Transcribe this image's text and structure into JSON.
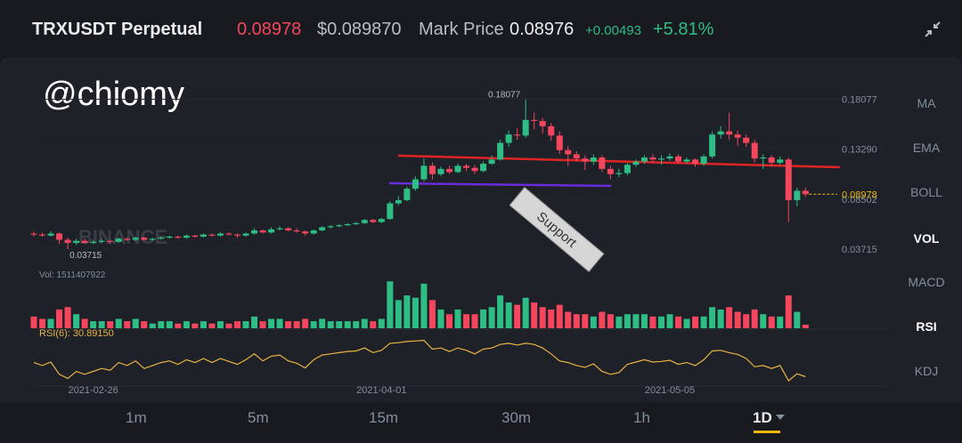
{
  "header": {
    "symbol": "TRXUSDT Perpetual",
    "last_price": "0.08978",
    "usd_price": "$0.089870",
    "mark_label": "Mark Price",
    "mark_price": "0.08976",
    "change": "+0.00493",
    "change_pct": "+5.81%"
  },
  "watermark": "@chiomy",
  "exchange_watermark": "BINANCE",
  "indicators": [
    "MA",
    "EMA",
    "BOLL",
    "VOL",
    "MACD",
    "RSI",
    "KDJ"
  ],
  "intervals": [
    "1m",
    "5m",
    "15m",
    "30m",
    "1h",
    "1D"
  ],
  "chart_data": {
    "type": "candlestick",
    "x": [
      "2021-02-19",
      "2021-02-20",
      "2021-02-21",
      "2021-02-22",
      "2021-02-23",
      "2021-02-24",
      "2021-02-25",
      "2021-02-26",
      "2021-02-27",
      "2021-02-28",
      "2021-03-01",
      "2021-03-02",
      "2021-03-03",
      "2021-03-04",
      "2021-03-05",
      "2021-03-06",
      "2021-03-07",
      "2021-03-08",
      "2021-03-09",
      "2021-03-10",
      "2021-03-11",
      "2021-03-12",
      "2021-03-13",
      "2021-03-14",
      "2021-03-15",
      "2021-03-16",
      "2021-03-17",
      "2021-03-18",
      "2021-03-19",
      "2021-03-20",
      "2021-03-21",
      "2021-03-22",
      "2021-03-23",
      "2021-03-24",
      "2021-03-25",
      "2021-03-26",
      "2021-03-27",
      "2021-03-28",
      "2021-03-29",
      "2021-03-30",
      "2021-03-31",
      "2021-04-01",
      "2021-04-02",
      "2021-04-03",
      "2021-04-04",
      "2021-04-05",
      "2021-04-06",
      "2021-04-07",
      "2021-04-08",
      "2021-04-09",
      "2021-04-10",
      "2021-04-11",
      "2021-04-12",
      "2021-04-13",
      "2021-04-14",
      "2021-04-15",
      "2021-04-16",
      "2021-04-17",
      "2021-04-18",
      "2021-04-19",
      "2021-04-20",
      "2021-04-21",
      "2021-04-22",
      "2021-04-23",
      "2021-04-24",
      "2021-04-25",
      "2021-04-26",
      "2021-04-27",
      "2021-04-28",
      "2021-04-29",
      "2021-04-30",
      "2021-05-01",
      "2021-05-02",
      "2021-05-03",
      "2021-05-04",
      "2021-05-05",
      "2021-05-06",
      "2021-05-07",
      "2021-05-08",
      "2021-05-09",
      "2021-05-10",
      "2021-05-11",
      "2021-05-12",
      "2021-05-13",
      "2021-05-14",
      "2021-05-15",
      "2021-05-16",
      "2021-05-17",
      "2021-05-18",
      "2021-05-19",
      "2021-05-20",
      "2021-05-21"
    ],
    "candles": [
      [
        0.052,
        0.054,
        0.049,
        0.051
      ],
      [
        0.051,
        0.053,
        0.049,
        0.05
      ],
      [
        0.05,
        0.054,
        0.049,
        0.052
      ],
      [
        0.052,
        0.053,
        0.042,
        0.046
      ],
      [
        0.046,
        0.048,
        0.03715,
        0.043
      ],
      [
        0.043,
        0.047,
        0.041,
        0.045
      ],
      [
        0.045,
        0.047,
        0.042,
        0.043
      ],
      [
        0.043,
        0.046,
        0.042,
        0.044
      ],
      [
        0.044,
        0.047,
        0.043,
        0.045
      ],
      [
        0.045,
        0.046,
        0.042,
        0.044
      ],
      [
        0.044,
        0.048,
        0.043,
        0.047
      ],
      [
        0.047,
        0.048,
        0.045,
        0.046
      ],
      [
        0.046,
        0.049,
        0.045,
        0.048
      ],
      [
        0.048,
        0.049,
        0.045,
        0.046
      ],
      [
        0.046,
        0.048,
        0.045,
        0.047
      ],
      [
        0.047,
        0.049,
        0.046,
        0.048
      ],
      [
        0.048,
        0.05,
        0.047,
        0.049
      ],
      [
        0.049,
        0.05,
        0.047,
        0.048
      ],
      [
        0.048,
        0.051,
        0.047,
        0.05
      ],
      [
        0.05,
        0.051,
        0.048,
        0.049
      ],
      [
        0.049,
        0.052,
        0.048,
        0.051
      ],
      [
        0.051,
        0.052,
        0.049,
        0.05
      ],
      [
        0.05,
        0.053,
        0.049,
        0.052
      ],
      [
        0.052,
        0.053,
        0.05,
        0.051
      ],
      [
        0.051,
        0.052,
        0.048,
        0.05
      ],
      [
        0.05,
        0.053,
        0.049,
        0.052
      ],
      [
        0.052,
        0.057,
        0.051,
        0.055
      ],
      [
        0.055,
        0.056,
        0.052,
        0.053
      ],
      [
        0.053,
        0.058,
        0.052,
        0.056
      ],
      [
        0.056,
        0.059,
        0.055,
        0.057
      ],
      [
        0.057,
        0.058,
        0.054,
        0.055
      ],
      [
        0.055,
        0.057,
        0.053,
        0.054
      ],
      [
        0.054,
        0.055,
        0.05,
        0.052
      ],
      [
        0.052,
        0.056,
        0.051,
        0.055
      ],
      [
        0.055,
        0.059,
        0.054,
        0.058
      ],
      [
        0.058,
        0.06,
        0.057,
        0.059
      ],
      [
        0.059,
        0.061,
        0.058,
        0.06
      ],
      [
        0.06,
        0.062,
        0.059,
        0.061
      ],
      [
        0.061,
        0.063,
        0.06,
        0.062
      ],
      [
        0.062,
        0.066,
        0.061,
        0.065
      ],
      [
        0.065,
        0.066,
        0.062,
        0.063
      ],
      [
        0.063,
        0.067,
        0.062,
        0.066
      ],
      [
        0.066,
        0.083,
        0.065,
        0.081
      ],
      [
        0.081,
        0.088,
        0.079,
        0.084
      ],
      [
        0.084,
        0.097,
        0.083,
        0.095
      ],
      [
        0.095,
        0.107,
        0.093,
        0.104
      ],
      [
        0.104,
        0.124,
        0.102,
        0.117
      ],
      [
        0.117,
        0.12,
        0.104,
        0.109
      ],
      [
        0.109,
        0.116,
        0.107,
        0.114
      ],
      [
        0.114,
        0.117,
        0.109,
        0.111
      ],
      [
        0.111,
        0.119,
        0.11,
        0.117
      ],
      [
        0.117,
        0.119,
        0.112,
        0.115
      ],
      [
        0.115,
        0.118,
        0.109,
        0.112
      ],
      [
        0.112,
        0.121,
        0.111,
        0.119
      ],
      [
        0.119,
        0.127,
        0.118,
        0.123
      ],
      [
        0.123,
        0.142,
        0.122,
        0.139
      ],
      [
        0.139,
        0.151,
        0.135,
        0.147
      ],
      [
        0.147,
        0.153,
        0.142,
        0.146
      ],
      [
        0.146,
        0.18077,
        0.144,
        0.161
      ],
      [
        0.161,
        0.168,
        0.152,
        0.16
      ],
      [
        0.16,
        0.163,
        0.148,
        0.155
      ],
      [
        0.155,
        0.158,
        0.141,
        0.146
      ],
      [
        0.146,
        0.15,
        0.128,
        0.132
      ],
      [
        0.132,
        0.136,
        0.117,
        0.128
      ],
      [
        0.128,
        0.131,
        0.121,
        0.124
      ],
      [
        0.124,
        0.127,
        0.113,
        0.121
      ],
      [
        0.121,
        0.128,
        0.118,
        0.125
      ],
      [
        0.125,
        0.127,
        0.111,
        0.114
      ],
      [
        0.114,
        0.117,
        0.104,
        0.109
      ],
      [
        0.109,
        0.114,
        0.106,
        0.11
      ],
      [
        0.11,
        0.12,
        0.108,
        0.118
      ],
      [
        0.118,
        0.123,
        0.116,
        0.121
      ],
      [
        0.121,
        0.127,
        0.119,
        0.125
      ],
      [
        0.125,
        0.128,
        0.12,
        0.123
      ],
      [
        0.123,
        0.127,
        0.118,
        0.124
      ],
      [
        0.124,
        0.129,
        0.122,
        0.126
      ],
      [
        0.126,
        0.128,
        0.119,
        0.121
      ],
      [
        0.121,
        0.125,
        0.119,
        0.123
      ],
      [
        0.123,
        0.124,
        0.116,
        0.119
      ],
      [
        0.119,
        0.128,
        0.117,
        0.126
      ],
      [
        0.126,
        0.15,
        0.124,
        0.147
      ],
      [
        0.147,
        0.155,
        0.143,
        0.15
      ],
      [
        0.15,
        0.168,
        0.142,
        0.147
      ],
      [
        0.147,
        0.151,
        0.136,
        0.144
      ],
      [
        0.144,
        0.147,
        0.135,
        0.139
      ],
      [
        0.139,
        0.142,
        0.12,
        0.124
      ],
      [
        0.124,
        0.128,
        0.114,
        0.125
      ],
      [
        0.125,
        0.127,
        0.116,
        0.12
      ],
      [
        0.12,
        0.126,
        0.118,
        0.123
      ],
      [
        0.123,
        0.125,
        0.063,
        0.084
      ],
      [
        0.084,
        0.096,
        0.078,
        0.093
      ],
      [
        0.093,
        0.096,
        0.087,
        0.08978
      ]
    ],
    "ylim": [
      0.02,
      0.195
    ],
    "yticks": [
      0.03715,
      0.08502,
      {
        "value": 0.1329,
        "label": "0.13290"
      },
      0.18077
    ],
    "xticks": [
      "2021-02-26",
      "2021-04-01",
      "2021-05-05"
    ],
    "volume_label": "Vol:",
    "volume": [
      5000000000.0,
      4000000000.0,
      4000000000.0,
      8000000000.0,
      9000000000.0,
      6000000000.0,
      4000000000.0,
      3000000000.0,
      3000000000.0,
      3000000000.0,
      4000000000.0,
      3000000000.0,
      4000000000.0,
      3000000000.0,
      2000000000.0,
      3000000000.0,
      3000000000.0,
      2000000000.0,
      3000000000.0,
      2000000000.0,
      3000000000.0,
      2000000000.0,
      3000000000.0,
      2000000000.0,
      3000000000.0,
      3000000000.0,
      5000000000.0,
      3000000000.0,
      4000000000.0,
      4000000000.0,
      3000000000.0,
      3000000000.0,
      4000000000.0,
      3000000000.0,
      4000000000.0,
      3000000000.0,
      3000000000.0,
      3000000000.0,
      3000000000.0,
      4000000000.0,
      3000000000.0,
      4000000000.0,
      20000000000.0,
      12000000000.0,
      14000000000.0,
      13000000000.0,
      19000000000.0,
      12000000000.0,
      8000000000.0,
      6000000000.0,
      8000000000.0,
      6000000000.0,
      6000000000.0,
      8000000000.0,
      9000000000.0,
      14000000000.0,
      11000000000.0,
      10000000000.0,
      13000000000.0,
      11000000000.0,
      9000000000.0,
      8000000000.0,
      10000000000.0,
      7000000000.0,
      6000000000.0,
      6000000000.0,
      5000000000.0,
      7000000000.0,
      6000000000.0,
      5000000000.0,
      6000000000.0,
      6000000000.0,
      6000000000.0,
      5000000000.0,
      5000000000.0,
      6000000000.0,
      5000000000.0,
      4000000000.0,
      5000000000.0,
      5000000000.0,
      9000000000.0,
      8000000000.0,
      9000000000.0,
      7000000000.0,
      6000000000.0,
      8000000000.0,
      6000000000.0,
      5000000000.0,
      5000000000.0,
      14000000000.0,
      7000000000.0,
      1511407922
    ],
    "vlim": [
      0,
      22000000000.0
    ],
    "rsi_label": "RSI(6): 30.89150",
    "rsi": [
      55,
      50,
      56,
      35,
      28,
      40,
      35,
      40,
      45,
      42,
      55,
      50,
      58,
      45,
      50,
      55,
      58,
      52,
      60,
      55,
      62,
      55,
      62,
      57,
      52,
      60,
      70,
      58,
      66,
      68,
      58,
      54,
      46,
      60,
      68,
      70,
      72,
      74,
      75,
      80,
      72,
      76,
      88,
      89,
      91,
      92,
      93,
      78,
      80,
      74,
      80,
      76,
      70,
      78,
      80,
      86,
      88,
      85,
      88,
      86,
      80,
      70,
      58,
      55,
      50,
      47,
      53,
      40,
      35,
      38,
      52,
      56,
      60,
      56,
      57,
      59,
      52,
      55,
      50,
      60,
      75,
      76,
      72,
      69,
      62,
      48,
      50,
      45,
      50,
      24,
      36,
      30.8915
    ],
    "rlim": [
      15,
      100
    ],
    "rsi_color": "#e8b342",
    "up_color": "#2ebd85",
    "down_color": "#f6465d",
    "last_color": "#f0b90b",
    "annotation": "Support"
  }
}
